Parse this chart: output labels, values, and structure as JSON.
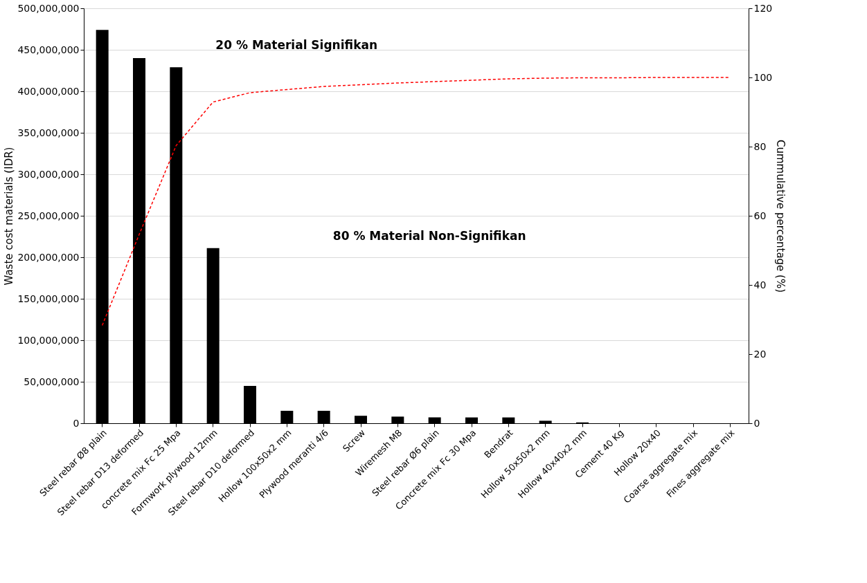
{
  "chart_data": {
    "type": "bar",
    "categories": [
      "Steel rebar Ø8 plain",
      "Steel rebar D13 deformed",
      "concrete mix Fc 25 Mpa",
      "Formwork plywood 12mm",
      "Steel rebar D10 deformed",
      "Hollow 100x50x2 mm",
      "Plywood meranti 4/6",
      "Screw",
      "Wiremesh M8",
      "Steel rebar Ø6 plain",
      "Concrete mix Fc 30 Mpa",
      "Bendrat",
      "Hollow 50x50x2 mm",
      "Hollow 40x40x2 mm",
      "Cement 40 Kg",
      "Hollow 20x40",
      "Coarse aggregate mix",
      "Fines aggregate mix"
    ],
    "series": [
      {
        "color": "#000000",
        "values": [
          474000000,
          440000000,
          429000000,
          211000000,
          45000000,
          15000000,
          15000000,
          9000000,
          8000000,
          7000000,
          7000000,
          7000000,
          3000000,
          1000000,
          0,
          0,
          0,
          0
        ]
      },
      {
        "type": "line",
        "axis": "y2",
        "color": "#ff0000",
        "line_style": "dashed",
        "marker": "none",
        "values": [
          28.3,
          54.6,
          80.3,
          92.9,
          95.6,
          96.5,
          97.4,
          97.9,
          98.4,
          98.8,
          99.2,
          99.6,
          99.8,
          99.9,
          99.9,
          100,
          100,
          100
        ]
      }
    ],
    "ylabel": "Waste cost materials (IDR)",
    "y2label": "Cummulative  percentage  (%)",
    "ylim": [
      0,
      500000000
    ],
    "yticks": [
      {
        "value": 0,
        "label": "0"
      },
      {
        "value": 50000000,
        "label": "50,000,000"
      },
      {
        "value": 100000000,
        "label": "100,000,000"
      },
      {
        "value": 150000000,
        "label": "150,000,000"
      },
      {
        "value": 200000000,
        "label": "200,000,000"
      },
      {
        "value": 250000000,
        "label": "250,000,000"
      },
      {
        "value": 300000000,
        "label": "300,000,000"
      },
      {
        "value": 350000000,
        "label": "350,000,000"
      },
      {
        "value": 400000000,
        "label": "400,000,000"
      },
      {
        "value": 450000000,
        "label": "450,000,000"
      },
      {
        "value": 500000000,
        "label": "500,000,000"
      }
    ],
    "y2lim": [
      0,
      120
    ],
    "y2ticks": [
      0,
      20,
      40,
      60,
      80,
      100,
      120
    ],
    "grid": "y",
    "annotations": [
      "20 % Material Signifikan",
      "80 % Material Non-Signifikan"
    ]
  }
}
